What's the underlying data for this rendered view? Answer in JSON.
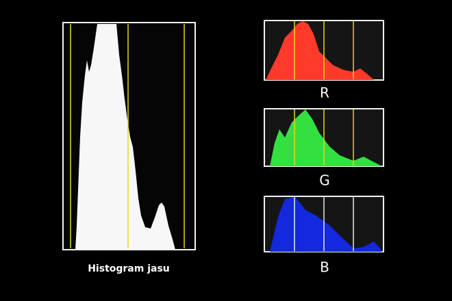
{
  "caption": "Histogram jasu",
  "channels": [
    {
      "label": "R"
    },
    {
      "label": "G"
    },
    {
      "label": "B"
    }
  ]
}
